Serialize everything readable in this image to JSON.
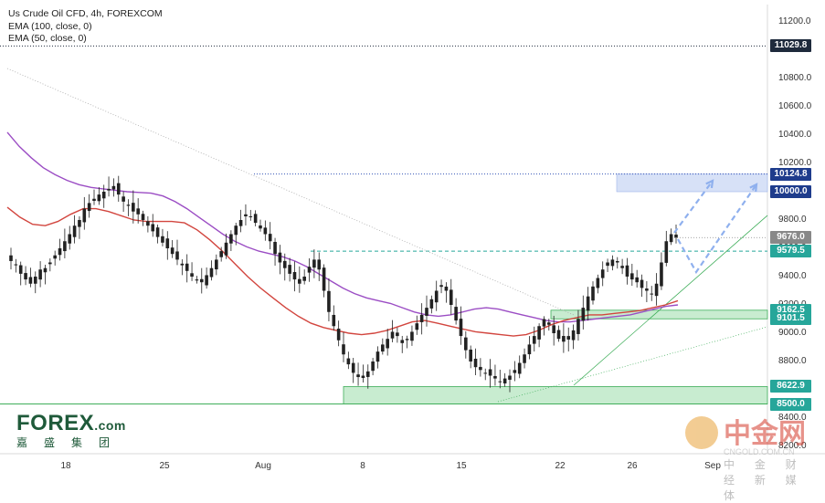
{
  "legend": {
    "line1": "Us Crude Oil CFD, 4h, FOREXCOM",
    "line2": "EMA (100, close, 0)",
    "line3": "EMA (50, close, 0)"
  },
  "colors": {
    "up": "#26a69a",
    "down": "#ef5350",
    "ema100": "#9b4dc4",
    "ema50": "#d2453e",
    "zone_green": "#c8ecd0",
    "zone_blue": "#d7e1f7",
    "arrow": "#8fb0ee"
  },
  "price_tags": [
    {
      "value": "11029.8",
      "color": "#1e2a3c"
    },
    {
      "value": "10124.8",
      "color": "#1e3c8c"
    },
    {
      "value": "10000.0",
      "color": "#1e3c8c"
    },
    {
      "value": "9676.0",
      "color": "#888888"
    },
    {
      "value": "9579.5",
      "color": "#26a69a"
    },
    {
      "value": "9162.5",
      "color": "#26a69a"
    },
    {
      "value": "9101.5",
      "color": "#26a69a"
    },
    {
      "value": "8622.9",
      "color": "#26a69a"
    },
    {
      "value": "8500.0",
      "color": "#26a69a"
    }
  ],
  "logo": {
    "main": "FOREX",
    "dotcom": ".com",
    "sub": "嘉盛集团"
  },
  "watermark": {
    "text": "中金网",
    "sub": "中 金 财 经 新 媒 体",
    "url": "CNGOLD.COM.CN"
  },
  "chart_data": {
    "type": "candlestick",
    "title": "Us Crude Oil CFD, 4h, FOREXCOM",
    "ylim": [
      8050,
      11350
    ],
    "yticks": [
      11200,
      11000,
      10800,
      10600,
      10400,
      10200,
      10000,
      9800,
      9600,
      9400,
      9200,
      9000,
      8800,
      8600,
      8400,
      8200
    ],
    "xticks": [
      "18",
      "25",
      "Aug",
      "8",
      "15",
      "22",
      "26",
      "Sep"
    ],
    "series_close": [
      9510,
      9480,
      9420,
      9380,
      9350,
      9400,
      9450,
      9460,
      9500,
      9550,
      9600,
      9650,
      9700,
      9760,
      9800,
      9880,
      9920,
      9950,
      9980,
      10000,
      10020,
      10040,
      9980,
      9930,
      9900,
      9860,
      9840,
      9800,
      9760,
      9720,
      9680,
      9640,
      9600,
      9560,
      9520,
      9480,
      9440,
      9400,
      9380,
      9360,
      9410,
      9460,
      9520,
      9580,
      9640,
      9700,
      9760,
      9800,
      9840,
      9820,
      9780,
      9740,
      9700,
      9650,
      9560,
      9500,
      9460,
      9420,
      9380,
      9350,
      9400,
      9470,
      9520,
      9450,
      9300,
      9150,
      9050,
      8950,
      8850,
      8780,
      8720,
      8690,
      8700,
      8730,
      8800,
      8870,
      8920,
      8960,
      9010,
      8980,
      8930,
      8960,
      9010,
      9070,
      9130,
      9180,
      9240,
      9300,
      9340,
      9300,
      9200,
      9090,
      8980,
      8880,
      8800,
      8760,
      8740,
      8720,
      8700,
      8680,
      8660,
      8680,
      8700,
      8740,
      8790,
      8850,
      8920,
      8980,
      9050,
      9100,
      9060,
      9000,
      8960,
      8940,
      8980,
      9020,
      9100,
      9180,
      9260,
      9330,
      9390,
      9450,
      9500,
      9520,
      9500,
      9460,
      9400,
      9380,
      9360,
      9320,
      9300,
      9280,
      9350,
      9500,
      9650,
      9700,
      9676
    ],
    "ema100": [
      10420,
      10320,
      10240,
      10170,
      10120,
      10080,
      10050,
      10030,
      10020,
      10010,
      10000,
      9995,
      9990,
      9970,
      9930,
      9880,
      9820,
      9760,
      9700,
      9650,
      9610,
      9580,
      9560,
      9540,
      9510,
      9470,
      9420,
      9370,
      9320,
      9280,
      9250,
      9230,
      9210,
      9180,
      9150,
      9130,
      9120,
      9130,
      9150,
      9170,
      9180,
      9170,
      9150,
      9130,
      9110,
      9090,
      9080,
      9080,
      9090,
      9100,
      9110,
      9120,
      9130,
      9150,
      9170,
      9190,
      9200
    ],
    "ema50": [
      9890,
      9820,
      9770,
      9760,
      9790,
      9840,
      9880,
      9880,
      9860,
      9830,
      9800,
      9790,
      9790,
      9790,
      9780,
      9730,
      9660,
      9580,
      9490,
      9400,
      9320,
      9250,
      9180,
      9120,
      9070,
      9040,
      9020,
      9000,
      8990,
      9000,
      9020,
      9050,
      9080,
      9090,
      9070,
      9050,
      9030,
      9010,
      9000,
      8990,
      8980,
      8990,
      9020,
      9060,
      9090,
      9110,
      9130,
      9130,
      9140,
      9150,
      9160,
      9180,
      9200,
      9230
    ],
    "annotations": {
      "resistance_zone": [
        10000.0,
        10124.8
      ],
      "support_zone_upper": [
        9101.5,
        9162.5
      ],
      "support_zone_lower": [
        8500.0,
        8622.9
      ],
      "dashed_level": 9579.5,
      "dotted_level_high": 11029.8,
      "last_price": 9676.0
    }
  }
}
